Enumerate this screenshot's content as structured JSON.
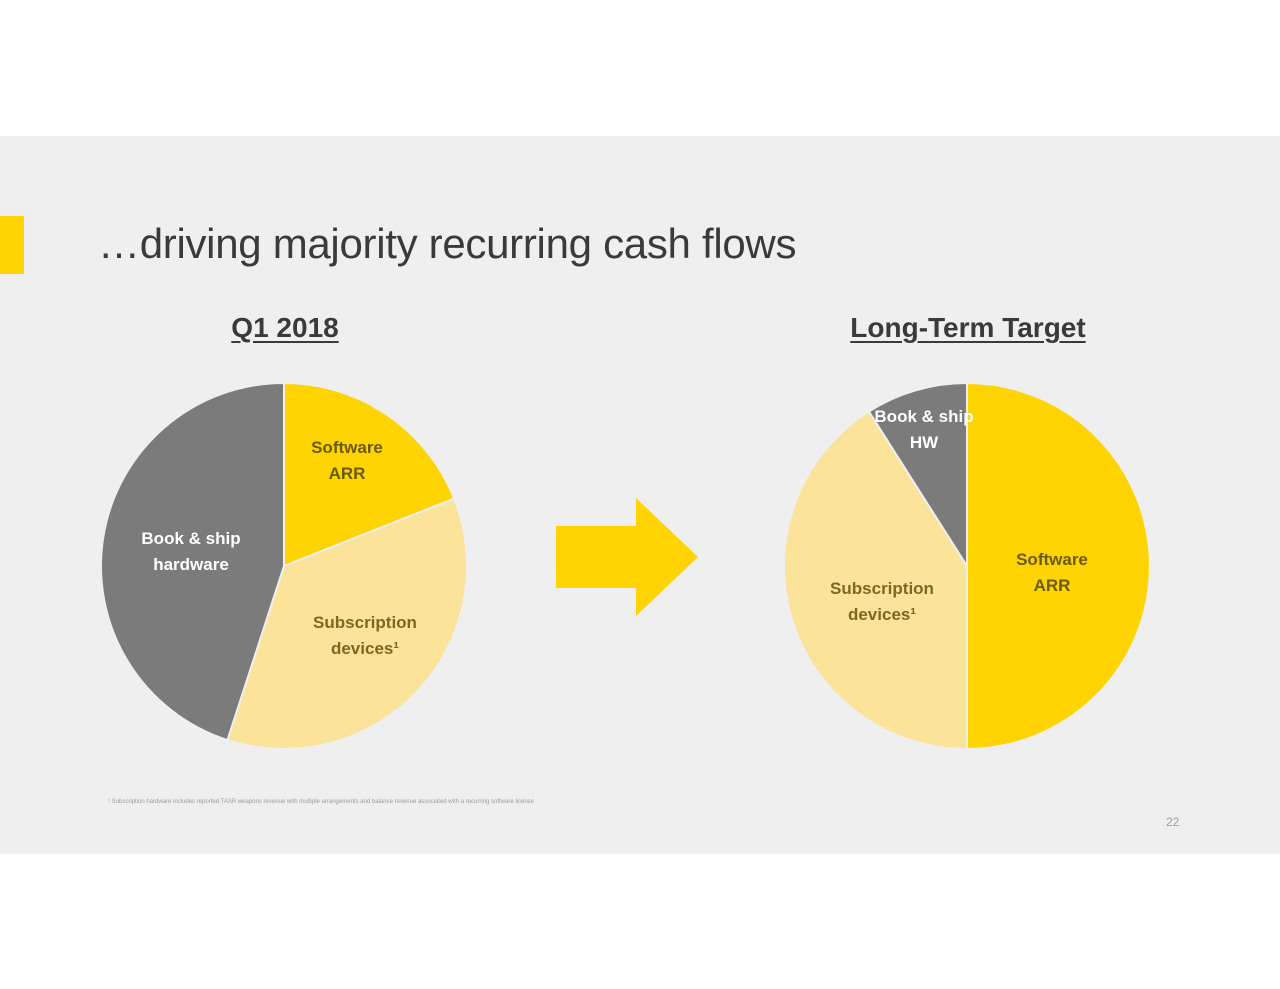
{
  "slide": {
    "title": "…driving majority recurring cash flows",
    "footnote": "¹ Subscription hardware includes reported TASR weapons revenue with multiple arrangements and balance revenue associated with a recurring software license",
    "page_number": "22"
  },
  "colors": {
    "software_arr": "#ffd400",
    "subscription_devices": "#fbe39a",
    "book_ship": "#7b7b7b",
    "accent": "#ffd400",
    "background": "#efefef"
  },
  "chart_data": [
    {
      "type": "pie",
      "title": "Q1 2018",
      "slices": [
        {
          "label": "Software ARR",
          "lines": [
            "Software",
            "ARR"
          ],
          "value": 19,
          "color": "#ffd400",
          "label_color": "#6b5a00"
        },
        {
          "label": "Subscription devices¹",
          "lines": [
            "Subscription",
            "devices¹"
          ],
          "value": 36,
          "color": "#fbe39a",
          "label_color": "#7a6a20"
        },
        {
          "label": "Book & ship hardware",
          "lines": [
            "Book & ship",
            "hardware"
          ],
          "value": 45,
          "color": "#7b7b7b",
          "label_color": "#ffffff"
        }
      ]
    },
    {
      "type": "pie",
      "title": "Long-Term Target",
      "slices": [
        {
          "label": "Software ARR",
          "lines": [
            "Software",
            "ARR"
          ],
          "value": 50,
          "color": "#ffd400",
          "label_color": "#6b5a00"
        },
        {
          "label": "Subscription devices¹",
          "lines": [
            "Subscription",
            "devices¹"
          ],
          "value": 41,
          "color": "#fbe39a",
          "label_color": "#7a6a20"
        },
        {
          "label": "Book & ship HW",
          "lines": [
            "Book & ship",
            "HW"
          ],
          "value": 9,
          "color": "#7b7b7b",
          "label_color": "#ffffff"
        }
      ]
    }
  ]
}
